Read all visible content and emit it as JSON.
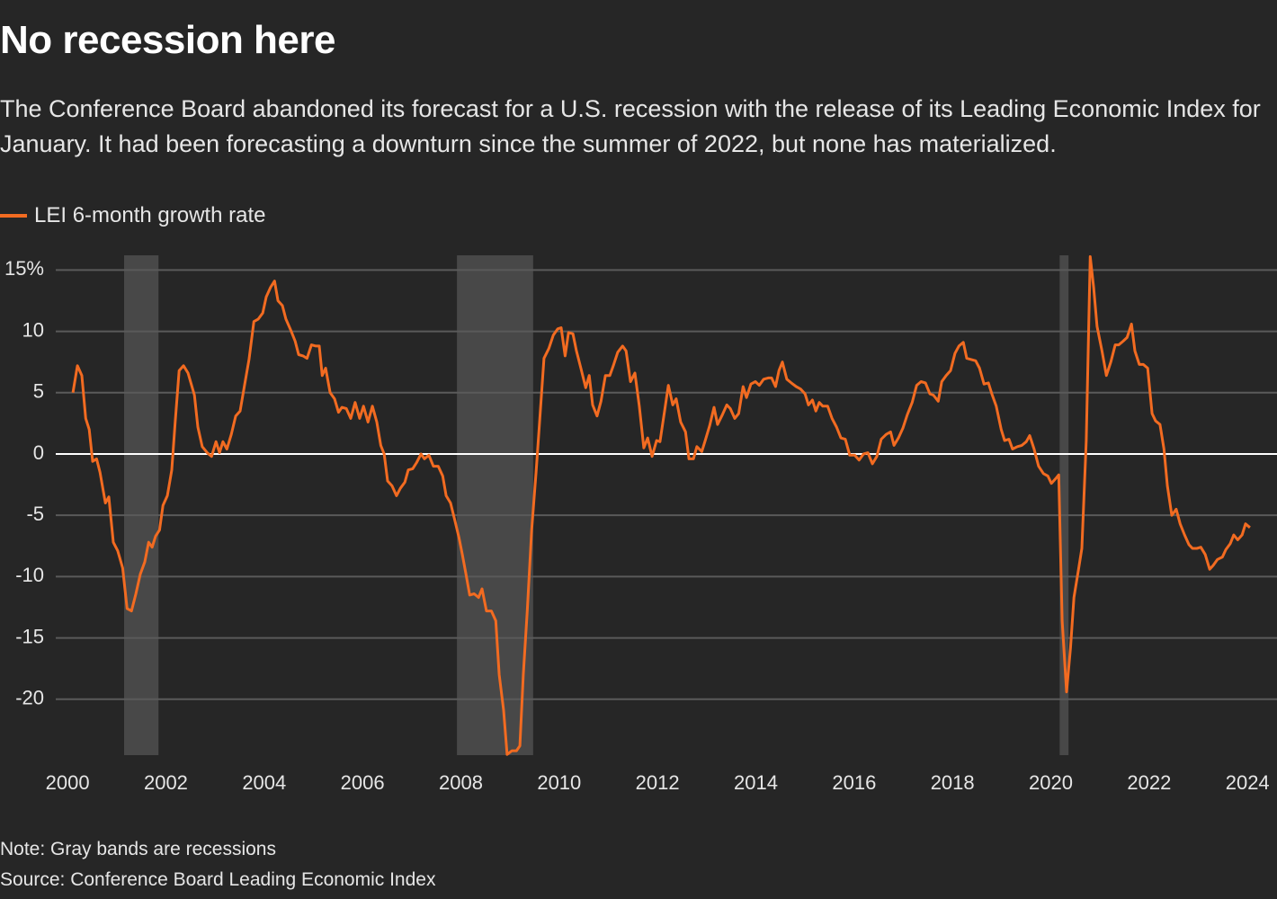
{
  "chart_data": {
    "type": "line",
    "title": "No recession here",
    "subtitle": "The Conference Board abandoned its forecast for a U.S. recession with the release of its Leading Economic Index for January. It had been forecasting a downturn since the summer of 2022, but none has materialized.",
    "note": "Note: Gray bands are recessions",
    "source": "Source: Conference Board Leading Economic Index",
    "xlim": [
      1999.76,
      2024.6
    ],
    "ylim": [
      -24.56,
      16.2
    ],
    "xticks": [
      2000,
      2002,
      2004,
      2006,
      2008,
      2010,
      2012,
      2014,
      2016,
      2018,
      2020,
      2022,
      2024
    ],
    "yticks": [
      {
        "value": 15,
        "label": "15%"
      },
      10,
      5,
      0,
      -5,
      -10,
      -15,
      -20
    ],
    "grid": true,
    "recessions": [
      [
        2001.15,
        2001.85
      ],
      [
        2007.92,
        2009.47
      ],
      [
        2020.18,
        2020.36
      ]
    ],
    "recession_color": "#484848",
    "x": [
      2000.11,
      2000.2,
      2000.29,
      2000.37,
      2000.44,
      2000.51,
      2000.59,
      2000.66,
      2000.77,
      2000.84,
      2000.93,
      2001.02,
      2001.12,
      2001.21,
      2001.3,
      2001.39,
      2001.48,
      2001.57,
      2001.65,
      2001.72,
      2001.79,
      2001.87,
      2001.94,
      2002.03,
      2002.12,
      2002.19,
      2002.27,
      2002.36,
      2002.45,
      2002.58,
      2002.65,
      2002.74,
      2002.84,
      2002.93,
      2003.02,
      2003.09,
      2003.16,
      2003.24,
      2003.33,
      2003.42,
      2003.51,
      2003.6,
      2003.69,
      2003.79,
      2003.88,
      2003.97,
      2004.04,
      2004.13,
      2004.21,
      2004.28,
      2004.37,
      2004.44,
      2004.54,
      2004.63,
      2004.7,
      2004.79,
      2004.87,
      2004.96,
      2005.05,
      2005.12,
      2005.18,
      2005.25,
      2005.34,
      2005.43,
      2005.51,
      2005.58,
      2005.67,
      2005.76,
      2005.85,
      2005.94,
      2006.02,
      2006.11,
      2006.2,
      2006.29,
      2006.37,
      2006.44,
      2006.51,
      2006.6,
      2006.69,
      2006.77,
      2006.86,
      2006.93,
      2007.02,
      2007.1,
      2007.19,
      2007.26,
      2007.35,
      2007.44,
      2007.54,
      2007.63,
      2007.7,
      2007.79,
      2007.87,
      2007.96,
      2008.03,
      2008.1,
      2008.18,
      2008.27,
      2008.36,
      2008.43,
      2008.52,
      2008.62,
      2008.71,
      2008.78,
      2008.87,
      2008.94,
      2009.04,
      2009.13,
      2009.2,
      2009.27,
      2009.35,
      2009.44,
      2009.53,
      2009.6,
      2009.69,
      2009.79,
      2009.88,
      2009.97,
      2010.04,
      2010.12,
      2010.19,
      2010.28,
      2010.35,
      2010.44,
      2010.54,
      2010.61,
      2010.68,
      2010.77,
      2010.85,
      2010.94,
      2011.03,
      2011.1,
      2011.19,
      2011.29,
      2011.36,
      2011.45,
      2011.54,
      2011.63,
      2011.72,
      2011.8,
      2011.89,
      2011.98,
      2012.05,
      2012.15,
      2012.22,
      2012.31,
      2012.38,
      2012.47,
      2012.57,
      2012.64,
      2012.73,
      2012.8,
      2012.9,
      2012.97,
      2013.06,
      2013.15,
      2013.22,
      2013.32,
      2013.41,
      2013.48,
      2013.57,
      2013.65,
      2013.74,
      2013.81,
      2013.9,
      2013.99,
      2014.07,
      2014.16,
      2014.25,
      2014.32,
      2014.4,
      2014.47,
      2014.54,
      2014.63,
      2014.72,
      2014.82,
      2014.91,
      2015.0,
      2015.07,
      2015.15,
      2015.22,
      2015.29,
      2015.36,
      2015.46,
      2015.55,
      2015.64,
      2015.73,
      2015.82,
      2015.91,
      2016.01,
      2016.1,
      2016.19,
      2016.28,
      2016.37,
      2016.46,
      2016.55,
      2016.65,
      2016.74,
      2016.81,
      2016.9,
      2016.99,
      2017.08,
      2017.18,
      2017.27,
      2017.36,
      2017.45,
      2017.54,
      2017.61,
      2017.71,
      2017.78,
      2017.87,
      2017.96,
      2018.05,
      2018.13,
      2018.22,
      2018.29,
      2018.38,
      2018.47,
      2018.55,
      2018.64,
      2018.73,
      2018.8,
      2018.89,
      2018.99,
      2019.06,
      2019.15,
      2019.22,
      2019.32,
      2019.41,
      2019.5,
      2019.57,
      2019.66,
      2019.75,
      2019.85,
      2019.94,
      2020.01,
      2020.1,
      2020.16,
      2020.23,
      2020.32,
      2020.4,
      2020.47,
      2020.56,
      2020.63,
      2020.72,
      2020.8,
      2020.87,
      2020.94,
      2021.04,
      2021.13,
      2021.22,
      2021.31,
      2021.38,
      2021.47,
      2021.55,
      2021.64,
      2021.71,
      2021.8,
      2021.88,
      2021.97,
      2022.06,
      2022.13,
      2022.22,
      2022.3,
      2022.37,
      2022.46,
      2022.55,
      2022.63,
      2022.72,
      2022.81,
      2022.88,
      2022.97,
      2023.05,
      2023.14,
      2023.23,
      2023.3,
      2023.39,
      2023.49,
      2023.56,
      2023.65,
      2023.72,
      2023.8,
      2023.89,
      2023.96,
      2024.05
    ],
    "series": [
      {
        "name": "LEI 6-month growth rate",
        "color": "#f26b21",
        "values": [
          5.0,
          7.2,
          6.4,
          2.9,
          2.0,
          -0.6,
          -0.4,
          -1.5,
          -4.0,
          -3.5,
          -7.2,
          -7.9,
          -9.3,
          -12.6,
          -12.8,
          -11.4,
          -9.8,
          -8.8,
          -7.2,
          -7.6,
          -6.7,
          -6.2,
          -4.2,
          -3.4,
          -1.3,
          2.6,
          6.8,
          7.2,
          6.6,
          4.8,
          2.2,
          0.6,
          0.1,
          -0.2,
          1.0,
          0.1,
          1.0,
          0.4,
          1.6,
          3.1,
          3.5,
          5.6,
          7.7,
          10.8,
          11.0,
          11.5,
          12.8,
          13.6,
          14.1,
          12.5,
          12.1,
          11.0,
          10.1,
          9.2,
          8.1,
          8.0,
          7.8,
          8.9,
          8.8,
          8.8,
          6.4,
          7.0,
          5.0,
          4.5,
          3.4,
          3.8,
          3.7,
          2.9,
          4.2,
          2.9,
          3.9,
          2.6,
          3.9,
          2.6,
          0.7,
          0,
          -2.2,
          -2.6,
          -3.4,
          -2.8,
          -2.3,
          -1.3,
          -1.2,
          -0.7,
          0,
          -0.4,
          -0.1,
          -1.0,
          -1.0,
          -1.8,
          -3.4,
          -4.0,
          -5.3,
          -6.8,
          -8.2,
          -9.7,
          -11.5,
          -11.4,
          -11.7,
          -11.0,
          -12.8,
          -12.8,
          -13.6,
          -18.0,
          -20.9,
          -24.5,
          -24.2,
          -24.2,
          -23.8,
          -18.0,
          -12.8,
          -6.2,
          -1.5,
          2.6,
          7.8,
          8.6,
          9.7,
          10.2,
          10.3,
          8.0,
          9.9,
          9.8,
          8.4,
          7.0,
          5.4,
          6.4,
          4.0,
          3.1,
          4.3,
          6.4,
          6.4,
          7.2,
          8.3,
          8.8,
          8.4,
          5.9,
          6.6,
          3.9,
          0.5,
          1.3,
          -0.2,
          1.1,
          1.0,
          3.7,
          5.6,
          4.0,
          4.5,
          2.6,
          1.8,
          -0.4,
          -0.4,
          0.6,
          0.2,
          1.1,
          2.3,
          3.8,
          2.4,
          3.2,
          4.0,
          3.7,
          2.9,
          3.3,
          5.5,
          4.6,
          5.7,
          5.9,
          5.6,
          6.1,
          6.2,
          6.2,
          5.5,
          6.8,
          7.5,
          6.1,
          5.8,
          5.5,
          5.3,
          4.9,
          4.0,
          4.4,
          3.5,
          4.2,
          3.9,
          3.9,
          2.9,
          2.2,
          1.3,
          1.2,
          -0.1,
          -0.1,
          -0.5,
          0,
          0.1,
          -0.8,
          -0.2,
          1.2,
          1.6,
          1.8,
          0.7,
          1.3,
          2.1,
          3.2,
          4.2,
          5.6,
          5.9,
          5.8,
          4.9,
          4.8,
          4.3,
          5.9,
          6.4,
          6.8,
          8.2,
          8.8,
          9.1,
          7.8,
          7.7,
          7.6,
          7.0,
          5.7,
          5.8,
          4.9,
          3.9,
          2.0,
          1.1,
          1.2,
          0.4,
          0.6,
          0.7,
          1.0,
          1.5,
          0.4,
          -1.0,
          -1.6,
          -1.8,
          -2.4,
          -2.0,
          -1.7,
          -13.6,
          -19.4,
          -15.8,
          -11.7,
          -9.5,
          -7.7,
          1.1,
          16.1,
          13.6,
          10.4,
          8.4,
          6.4,
          7.5,
          8.9,
          8.9,
          9.2,
          9.5,
          10.6,
          8.4,
          7.3,
          7.3,
          7.0,
          3.3,
          2.7,
          2.4,
          0.4,
          -2.6,
          -5.0,
          -4.5,
          -5.7,
          -6.6,
          -7.4,
          -7.7,
          -7.7,
          -7.6,
          -8.2,
          -9.4,
          -9.1,
          -8.6,
          -8.4,
          -7.8,
          -7.3,
          -6.6,
          -7.0,
          -6.6,
          -5.7,
          -6.0
        ]
      }
    ]
  }
}
